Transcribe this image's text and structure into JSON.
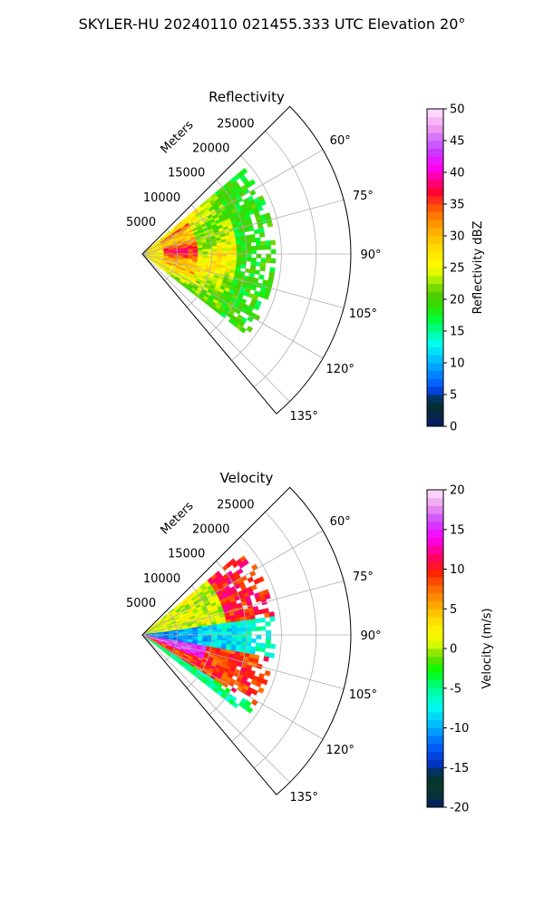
{
  "suptitle": "SKYLER-HU  20240110  021455.333 UTC Elevation 20°",
  "panels": {
    "reflectivity": {
      "title": "Reflectivity",
      "radial_axis_label": "Meters",
      "radial_ticks": [
        "5000",
        "10000",
        "15000",
        "20000",
        "25000"
      ],
      "angle_ticks": [
        "60°",
        "75°",
        "90°",
        "105°",
        "120°",
        "135°"
      ],
      "colorbar_label": "Reflectivity dBZ",
      "colorbar_ticks": [
        "0",
        "5",
        "10",
        "15",
        "20",
        "25",
        "30",
        "35",
        "40",
        "45",
        "50"
      ]
    },
    "velocity": {
      "title": "Velocity",
      "radial_axis_label": "Meters",
      "radial_ticks": [
        "5000",
        "10000",
        "15000",
        "20000",
        "25000"
      ],
      "angle_ticks": [
        "60°",
        "75°",
        "90°",
        "105°",
        "120°",
        "135°"
      ],
      "colorbar_label": "Velocity (m/s)",
      "colorbar_ticks": [
        "-20",
        "-15",
        "-10",
        "-5",
        "0",
        "5",
        "10",
        "15",
        "20"
      ]
    }
  },
  "chart_data": [
    {
      "type": "heatmap",
      "projection": "polar-sector",
      "title": "Reflectivity",
      "radial_label": "Meters",
      "r_range": [
        0,
        30000
      ],
      "r_ticks": [
        5000,
        10000,
        15000,
        20000,
        25000
      ],
      "theta_range_deg": [
        45,
        140
      ],
      "theta_ticks_deg": [
        60,
        75,
        90,
        105,
        120,
        135
      ],
      "grid": true,
      "data_extent": {
        "theta_deg": [
          50,
          128
        ],
        "r_max": 19000
      },
      "colorbar": {
        "label": "Reflectivity dBZ",
        "range": [
          0,
          50
        ],
        "ticks": [
          0,
          5,
          10,
          15,
          20,
          25,
          30,
          35,
          40,
          45,
          50
        ]
      },
      "field_summary": [
        {
          "region": "range < 3000 m",
          "value": 27
        },
        {
          "region": "range 4000-7000 m, azimuth 55-110°",
          "value": 35
        },
        {
          "region": "range 7000-13000 m",
          "value": 24
        },
        {
          "region": "range > 13000 m",
          "value": 19
        }
      ],
      "colors": {
        "low": "#001a66",
        "mid": "#33cc00",
        "high": "#ff0033",
        "top": "#ffe6ff"
      }
    },
    {
      "type": "heatmap",
      "projection": "polar-sector",
      "title": "Velocity",
      "radial_label": "Meters",
      "r_range": [
        0,
        30000
      ],
      "r_ticks": [
        5000,
        10000,
        15000,
        20000,
        25000
      ],
      "theta_range_deg": [
        45,
        140
      ],
      "theta_ticks_deg": [
        60,
        75,
        90,
        105,
        120,
        135
      ],
      "grid": true,
      "data_extent": {
        "theta_deg": [
          50,
          128
        ],
        "r_max": 19000
      },
      "colorbar": {
        "label": "Velocity (m/s)",
        "range": [
          -20,
          20
        ],
        "ticks": [
          -20,
          -15,
          -10,
          -5,
          0,
          5,
          10,
          15,
          20
        ]
      },
      "field_summary": [
        {
          "region": "azimuth < 80°, range 5000-12000 m",
          "value": 1
        },
        {
          "region": "azimuth < 80°, range > 13000 m",
          "value": 10
        },
        {
          "region": "azimuth 85-100°",
          "value": -12
        },
        {
          "region": "azimuth 100-110°, near range",
          "value": 15
        },
        {
          "region": "azimuth 105-120°",
          "value": 9
        },
        {
          "region": "azimuth > 120°",
          "value": -5
        }
      ],
      "colors": {
        "low": "#001a66",
        "mid": "#ffee00",
        "high": "#ff0033",
        "top": "#ffe6ff"
      }
    }
  ]
}
